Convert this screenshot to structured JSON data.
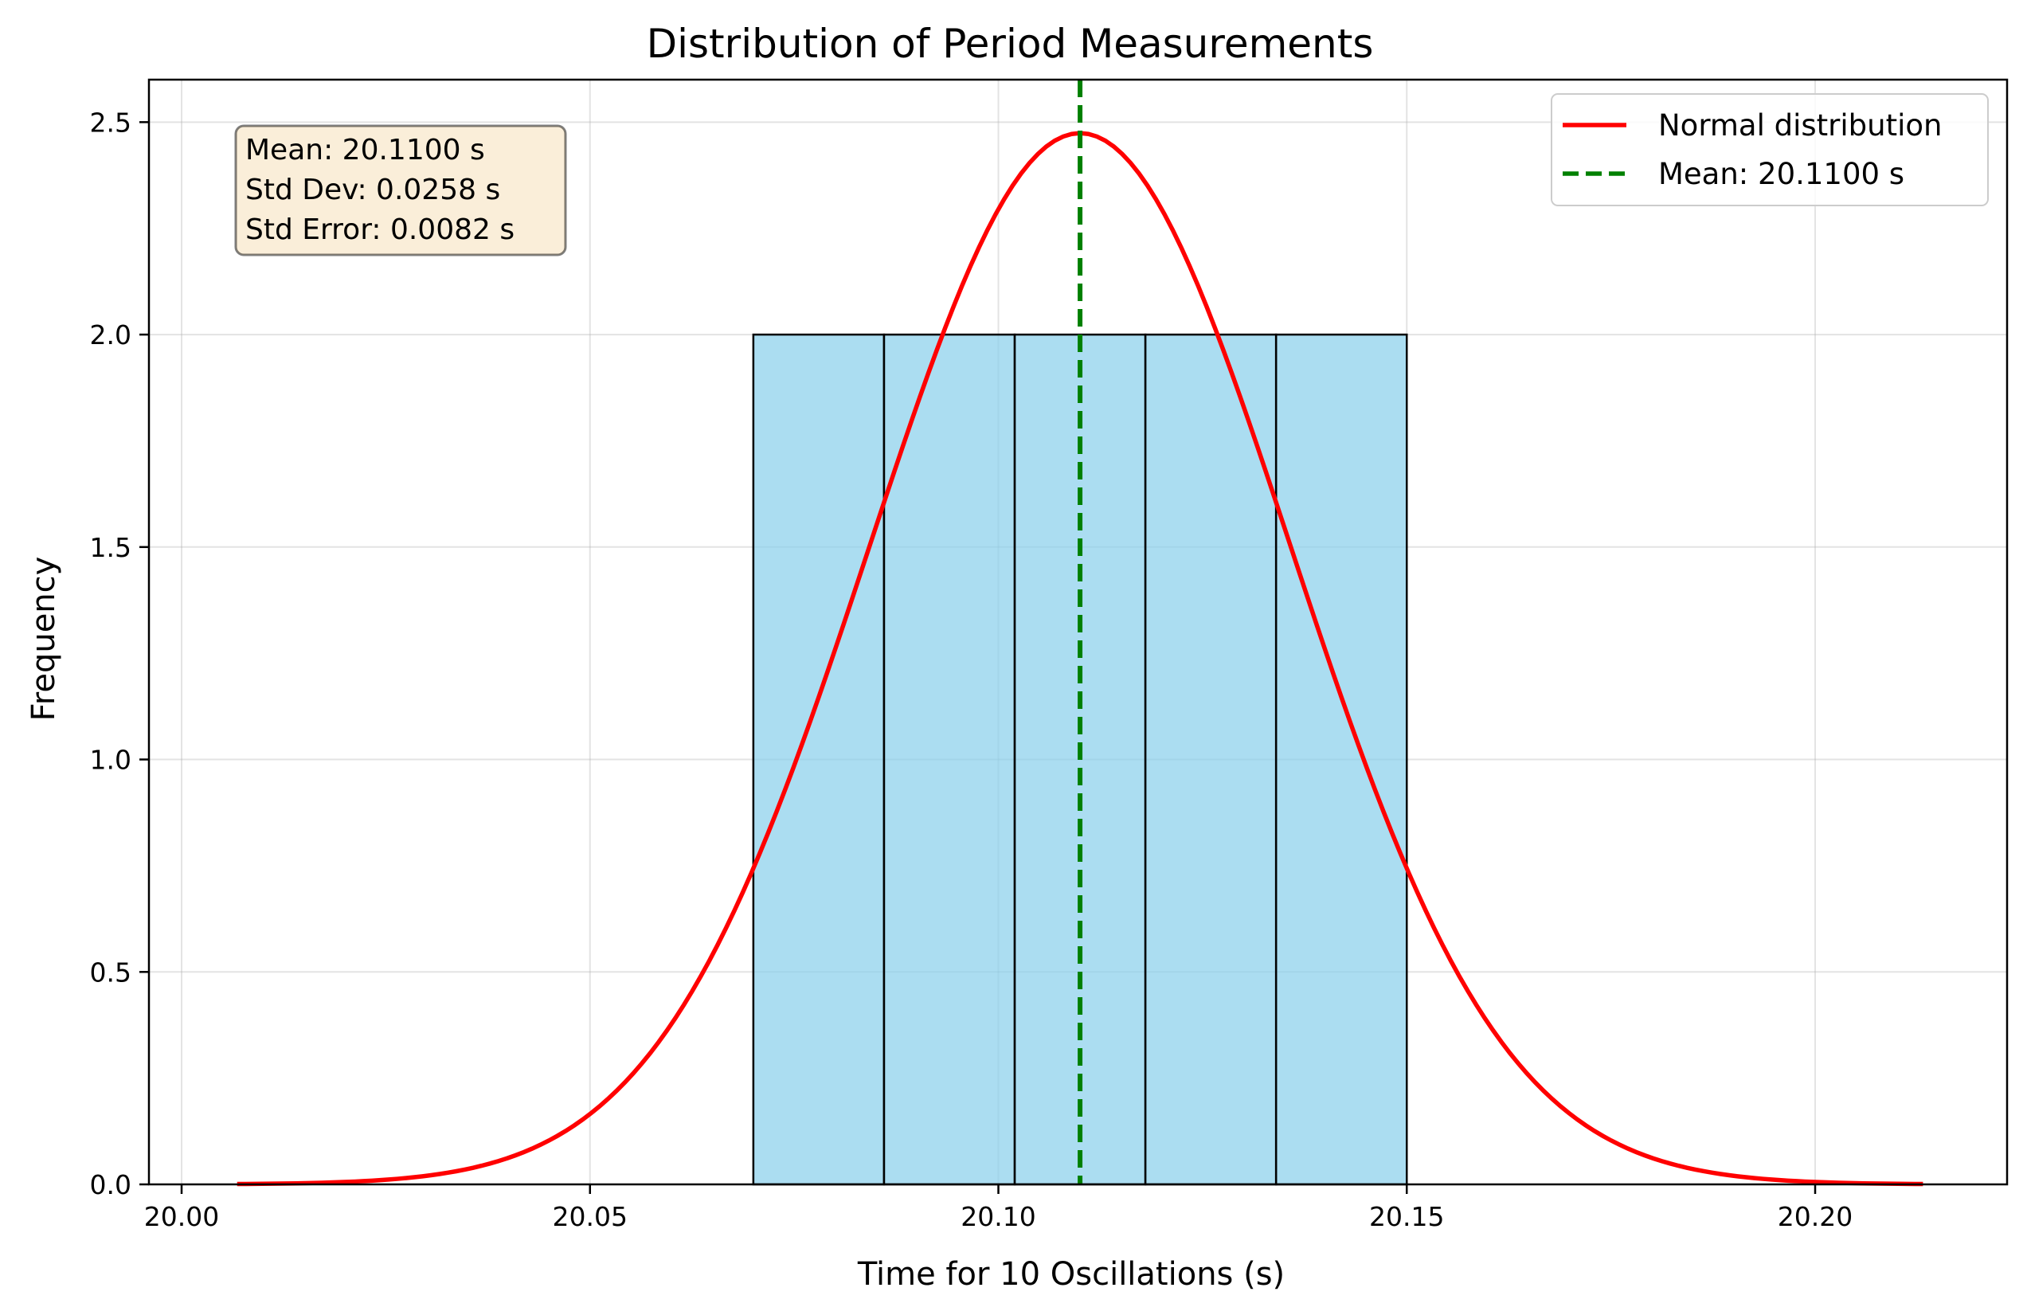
{
  "chart_data": {
    "type": "bar",
    "title": "Distribution of Period Measurements",
    "xlabel": "Time for 10 Oscillations (s)",
    "ylabel": "Frequency",
    "xlim": [
      19.996,
      20.2235
    ],
    "ylim": [
      0,
      2.6
    ],
    "xticks": [
      "20.00",
      "20.05",
      "20.10",
      "20.15",
      "20.20"
    ],
    "xtick_values": [
      20.0,
      20.05,
      20.1,
      20.15,
      20.2
    ],
    "yticks": [
      "0.0",
      "0.5",
      "1.0",
      "1.5",
      "2.0",
      "2.5"
    ],
    "ytick_values": [
      0.0,
      0.5,
      1.0,
      1.5,
      2.0,
      2.5
    ],
    "grid": true,
    "legend_position": "top-right",
    "bins": [
      {
        "start": 20.07,
        "end": 20.086,
        "count": 2
      },
      {
        "start": 20.086,
        "end": 20.102,
        "count": 2
      },
      {
        "start": 20.102,
        "end": 20.118,
        "count": 2
      },
      {
        "start": 20.118,
        "end": 20.134,
        "count": 2
      },
      {
        "start": 20.134,
        "end": 20.15,
        "count": 2
      }
    ],
    "bar_color": "#87ceeb",
    "normal_curve": {
      "name": "Normal distribution",
      "color": "#ff0000",
      "mean": 20.11,
      "std": 0.0258,
      "scale_area": 0.16,
      "x_range": [
        20.0068,
        20.2132
      ]
    },
    "mean_line": {
      "name": "Mean: 20.1100 s",
      "value": 20.11,
      "color": "#008000"
    },
    "stats_box": {
      "lines": [
        "Mean: 20.1100 s",
        "Std Dev: 0.0258 s",
        "Std Error: 0.0082 s"
      ],
      "position": "top-left"
    }
  }
}
